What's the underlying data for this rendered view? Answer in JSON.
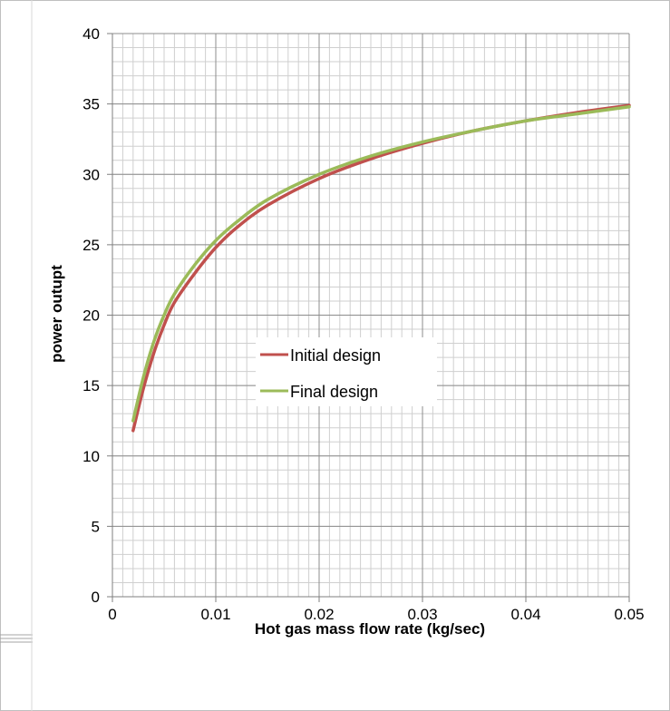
{
  "chart_data": {
    "type": "line",
    "title": "",
    "xlabel": "Hot gas mass flow rate (kg/sec)",
    "ylabel": "power outupt",
    "xlim": [
      0,
      0.05
    ],
    "ylim": [
      0,
      40
    ],
    "x_ticks": [
      "0",
      "0.01",
      "0.02",
      "0.03",
      "0.04",
      "0.05"
    ],
    "y_ticks": [
      "0",
      "5",
      "10",
      "15",
      "20",
      "25",
      "30",
      "35",
      "40"
    ],
    "grid": true,
    "legend_position": "center",
    "series": [
      {
        "name": "Initial design",
        "color": "#c0504d",
        "x": [
          0.002,
          0.003,
          0.004,
          0.005,
          0.006,
          0.008,
          0.01,
          0.012,
          0.015,
          0.02,
          0.025,
          0.03,
          0.035,
          0.04,
          0.045,
          0.05
        ],
        "y": [
          11.8,
          14.8,
          17.3,
          19.3,
          20.9,
          23.0,
          24.8,
          26.2,
          27.8,
          29.7,
          31.1,
          32.2,
          33.1,
          33.8,
          34.4,
          34.9
        ]
      },
      {
        "name": "Final design",
        "color": "#9bbb59",
        "x": [
          0.002,
          0.003,
          0.004,
          0.005,
          0.006,
          0.008,
          0.01,
          0.012,
          0.015,
          0.02,
          0.025,
          0.03,
          0.035,
          0.04,
          0.045,
          0.05
        ],
        "y": [
          12.5,
          15.6,
          18.1,
          20.0,
          21.5,
          23.6,
          25.3,
          26.6,
          28.2,
          30.0,
          31.3,
          32.3,
          33.1,
          33.8,
          34.3,
          34.8
        ]
      }
    ]
  }
}
